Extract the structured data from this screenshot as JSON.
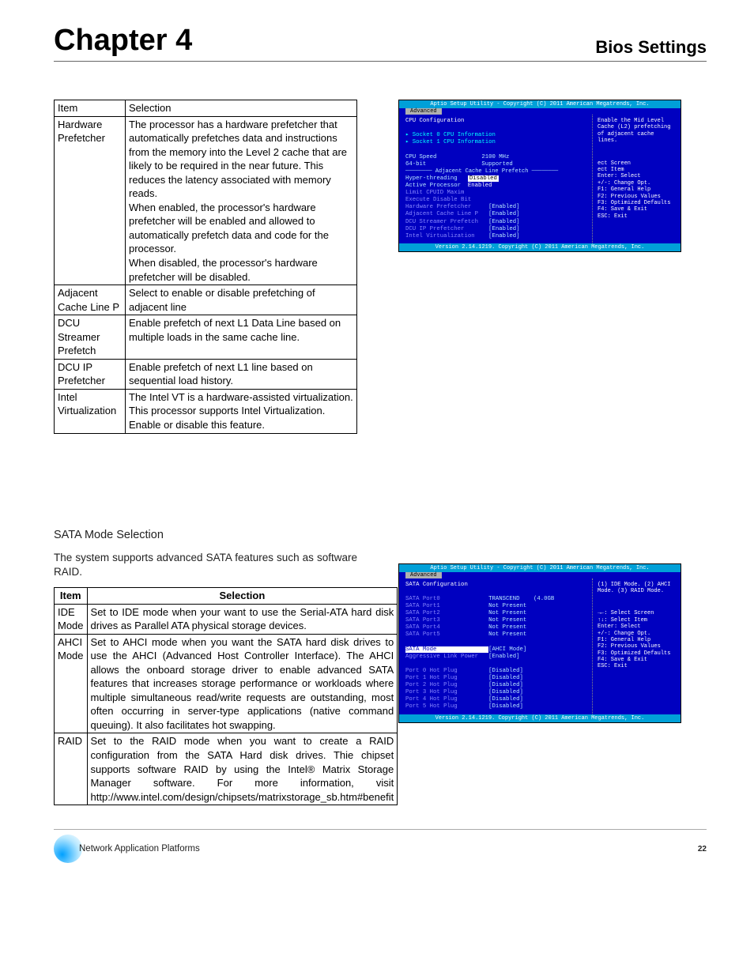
{
  "header": {
    "chapter": "Chapter 4",
    "section": "Bios Settings"
  },
  "table1": {
    "headers": [
      "Item",
      "Selection"
    ],
    "rows": [
      [
        "Hardware Prefetcher",
        "The processor has a hardware prefetcher that automatically prefetches data and instructions from the memory into the Level 2 cache that are likely to be required in the near future. This reduces the latency associated with memory reads.\nWhen enabled, the processor's hardware prefetcher will be enabled and allowed to automatically prefetch data and code for the processor.\nWhen disabled, the processor's hardware prefetcher will be disabled."
      ],
      [
        "Adjacent Cache Line P",
        "Select to enable or disable prefetching of adjacent line"
      ],
      [
        "DCU Streamer Prefetch",
        "Enable prefetch of next L1 Data Line based on multiple loads in the same cache line."
      ],
      [
        "DCU IP Prefetcher",
        "Enable prefetch of next L1 line based on sequential load history."
      ],
      [
        "Intel Virtualization",
        "The Intel VT is a hardware-assisted virtualization. This processor supports Intel Virtualization. Enable or disable this feature."
      ]
    ]
  },
  "sata": {
    "heading": "SATA Mode Selection",
    "intro": "The system supports advanced SATA features such as software RAID."
  },
  "table2": {
    "headers": [
      "Item",
      "Selection"
    ],
    "rows": [
      [
        "IDE Mode",
        "Set to IDE mode when your want to use the Serial-ATA hard disk drives as Parallel ATA physical storage devices."
      ],
      [
        "AHCI Mode",
        "Set to AHCI mode when you want the SATA hard disk drives to use the AHCI (Advanced Host Controller Interface). The AHCI allows the onboard storage driver to enable advanced SATA features that increases storage performance or workloads where multiple simultaneous read/write requests are outstanding, most often occurring in server-type applications (native command queuing). It also facilitates hot swapping."
      ],
      [
        "RAID",
        "Set to the RAID mode when you want to create a RAID configuration from the SATA Hard disk drives. Thie chipset supports software RAID  by using the Intel® Matrix Storage Manager software. For more information, visit http://www.intel.com/design/chipsets/matrixstorage_sb.htm#benefit"
      ]
    ]
  },
  "bios1": {
    "title": "Aptio Setup Utility - Copyright (C) 2011 American Megatrends, Inc.",
    "tab": "Advanced",
    "leftTop": "CPU Configuration",
    "socket0": "▸ Socket 0 CPU Information",
    "socket1": "▸ Socket 1 CPU Information",
    "lines": [
      [
        "CPU Speed",
        "2100 MHz"
      ],
      [
        "64-bit",
        "Supported"
      ]
    ],
    "dialogTitle": "Adjacent Cache Line Prefetch",
    "dialogOpts": [
      "Disabled",
      "Enabled"
    ],
    "belowLines": [
      [
        "Hyper-threading",
        ""
      ],
      [
        "Active Processor",
        ""
      ],
      [
        "Limit CPUID Maxim",
        ""
      ],
      [
        "Execute Disable Bit",
        ""
      ],
      [
        "Hardware Prefetcher",
        "[Enabled]"
      ],
      [
        "Adjacent Cache Line P",
        "[Enabled]"
      ],
      [
        "DCU Streamer Prefetch",
        "[Enabled]"
      ],
      [
        "DCU IP Prefetcher",
        "[Enabled]"
      ],
      [
        "Intel Virtualization",
        "[Enabled]"
      ]
    ],
    "rightTop": "Enable the Mid Level Cache (L2) prefetching of adjacent cache lines.",
    "keys": [
      "ect Screen",
      "ect Item",
      "Enter: Select",
      "+/-: Change Opt.",
      "F1: General Help",
      "F2: Previous Values",
      "F3: Optimized Defaults",
      "F4: Save & Exit",
      "ESC: Exit"
    ],
    "footer": "Version 2.14.1219. Copyright (C) 2011 American Megatrends, Inc."
  },
  "bios2": {
    "title": "Aptio Setup Utility - Copyright (C) 2011 American Megatrends, Inc.",
    "tab": "Advanced",
    "leftTop": "SATA Configuration",
    "ports": [
      [
        "SATA Port0",
        "TRANSCEND    (4.0GB"
      ],
      [
        "SATA Port1",
        "Not Present"
      ],
      [
        "SATA Port2",
        "Not Present"
      ],
      [
        "SATA Port3",
        "Not Present"
      ],
      [
        "SATA Port4",
        "Not Present"
      ],
      [
        "SATA Port5",
        "Not Present"
      ]
    ],
    "modeLines": [
      [
        "SATA Mode",
        "[AHCI Mode]"
      ],
      [
        "Aggressive Link Power",
        "[Enabled]"
      ]
    ],
    "hotplug": [
      [
        "Port 0 Hot Plug",
        "[Disabled]"
      ],
      [
        "Port 1 Hot Plug",
        "[Disabled]"
      ],
      [
        "Port 2 Hot Plug",
        "[Disabled]"
      ],
      [
        "Port 3 Hot Plug",
        "[Disabled]"
      ],
      [
        "Port 4 Hot Plug",
        "[Disabled]"
      ],
      [
        "Port 5 Hot Plug",
        "[Disabled]"
      ]
    ],
    "rightTop": "(1) IDE Mode. (2) AHCI Mode. (3) RAID Mode.",
    "keys": [
      "→←: Select Screen",
      "↑↓: Select Item",
      "Enter: Select",
      "+/-: Change Opt.",
      "F1: General Help",
      "F2: Previous Values",
      "F3: Optimized Defaults",
      "F4: Save & Exit",
      "ESC: Exit"
    ],
    "footer": "Version 2.14.1219. Copyright (C) 2011 American Megatrends, Inc."
  },
  "footer": {
    "text": "Network Application Platforms",
    "page": "22"
  },
  "colors": {
    "bios_bg": "#0000c0",
    "bios_header": "#00a0d8"
  }
}
